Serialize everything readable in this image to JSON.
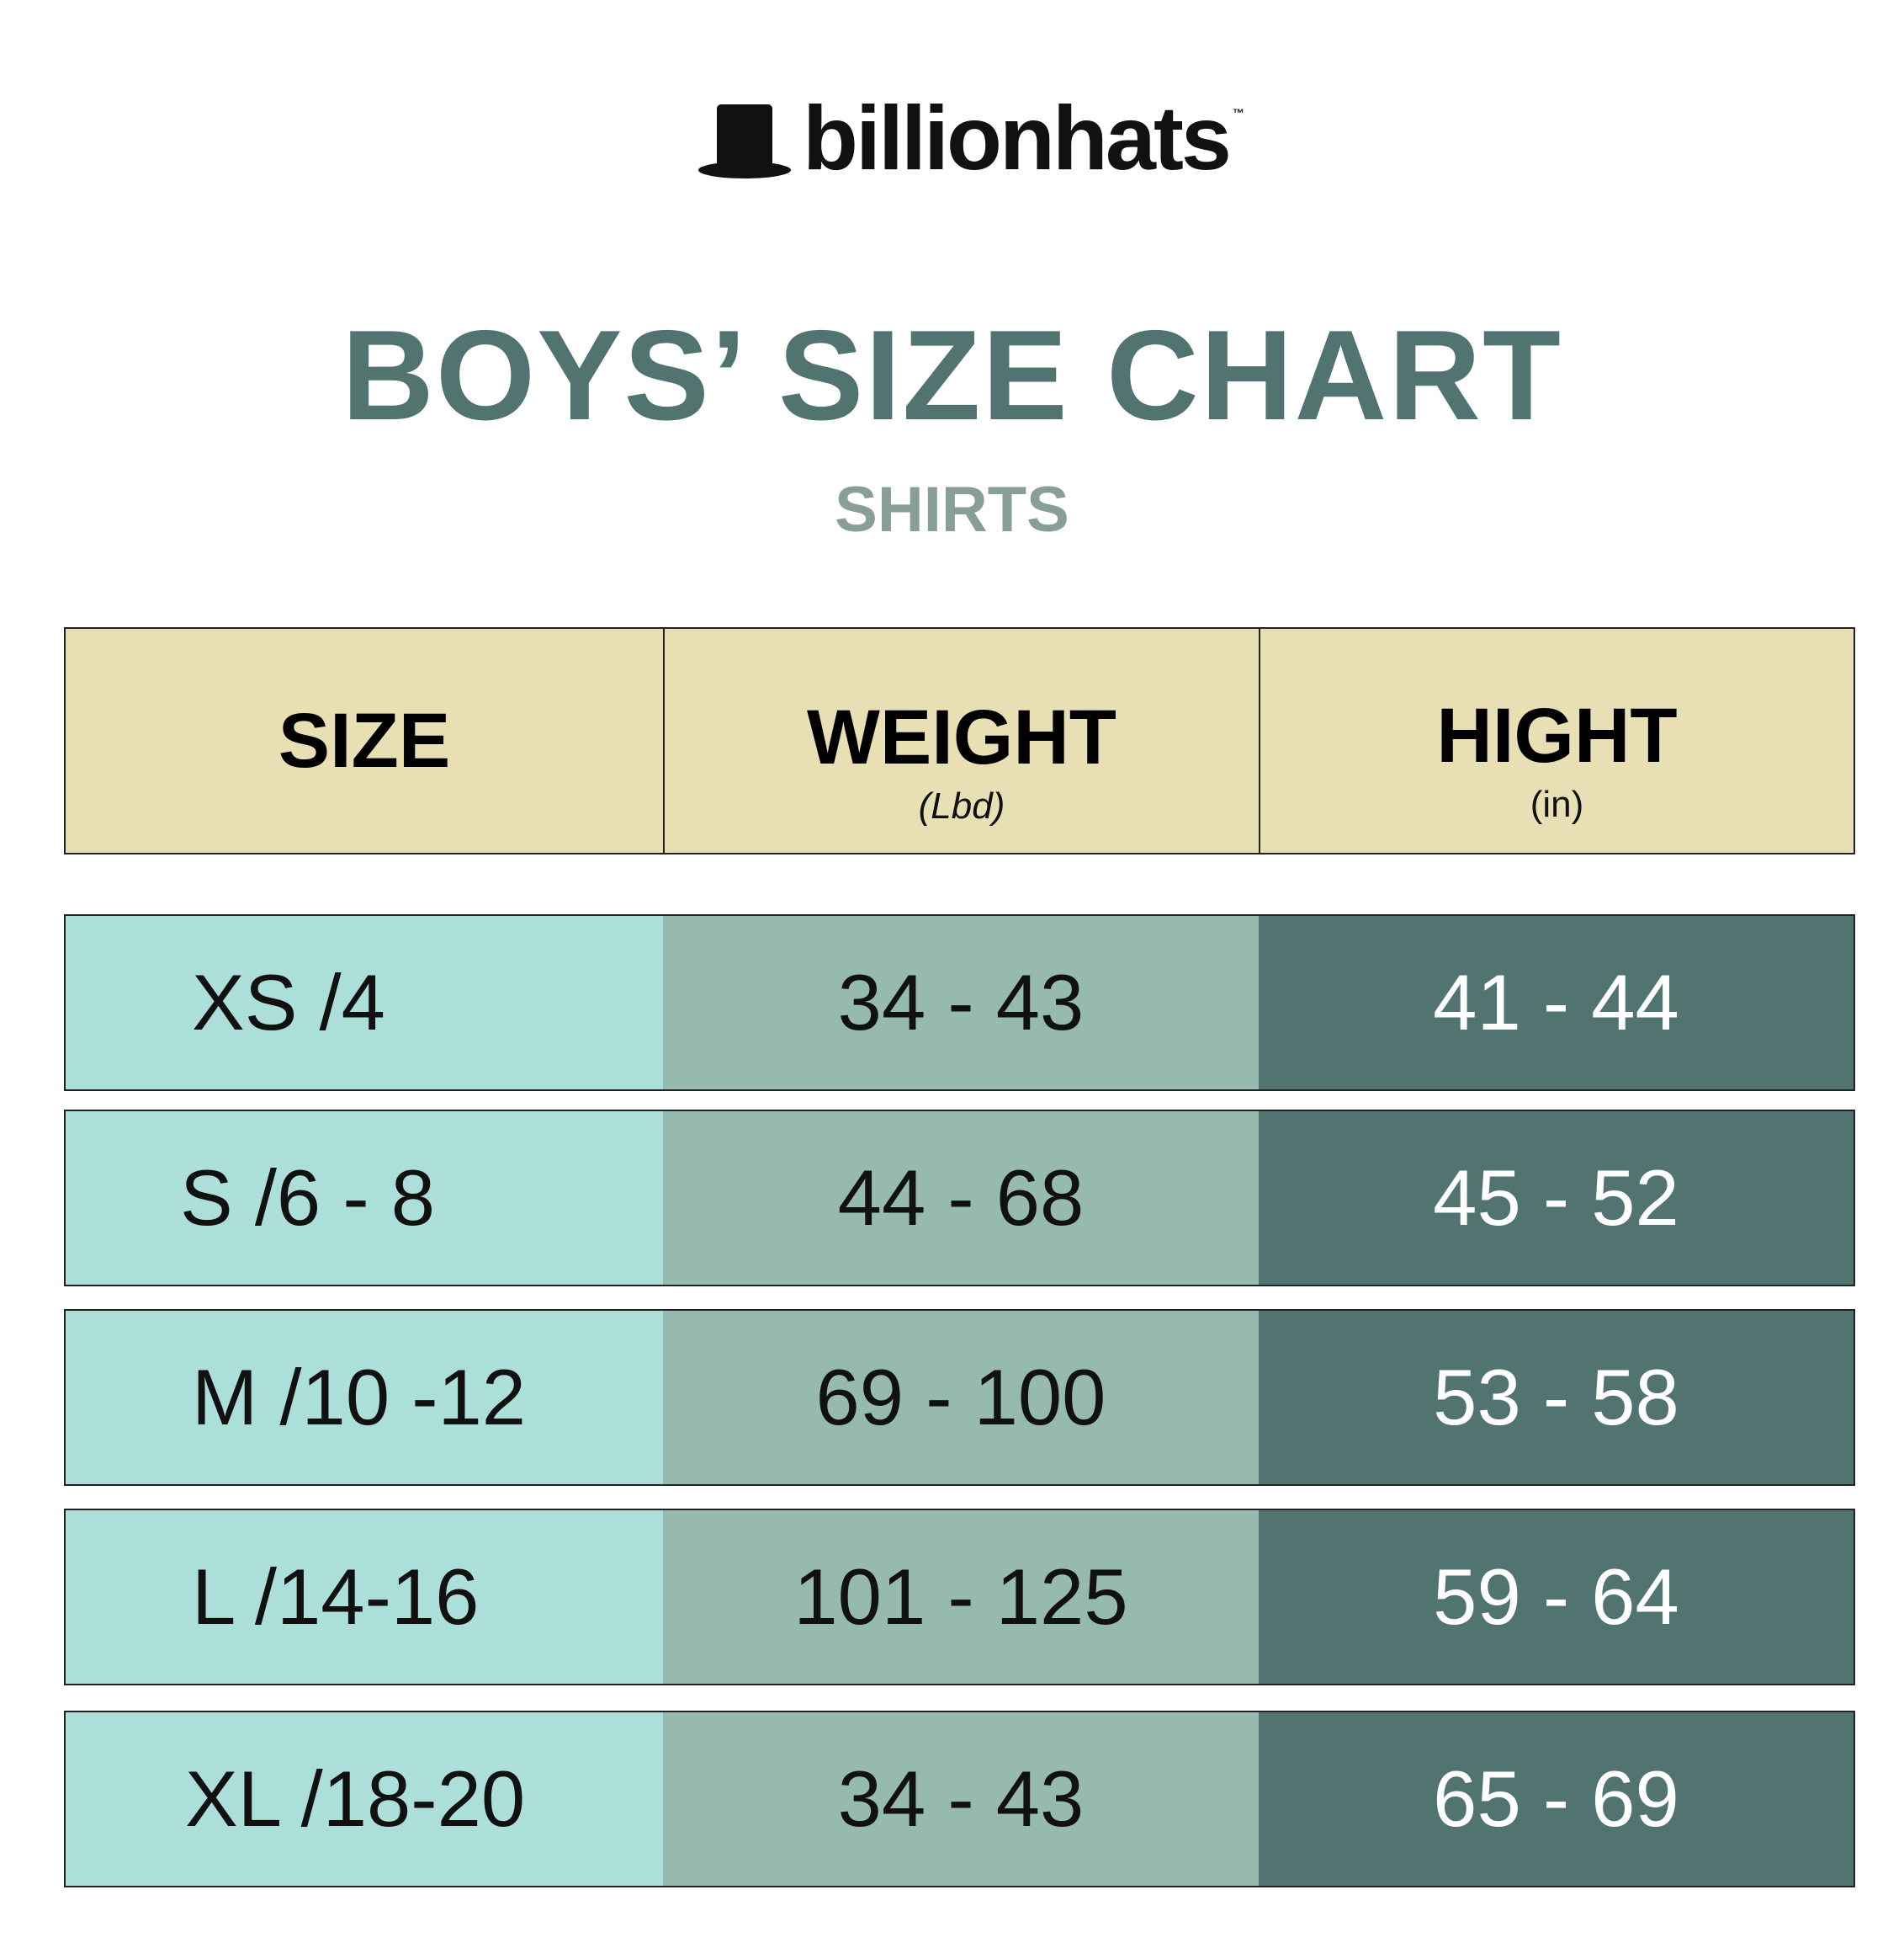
{
  "brand": {
    "name": "billionhats",
    "trademark": "™",
    "logo_icon": "top-hat-icon"
  },
  "title": "BOYS’ SIZE CHART",
  "subtitle": "SHIRTS",
  "colors": {
    "title": "#527470",
    "subtitle": "#889e98",
    "header_bg": "#e9dfb4",
    "size_col": "#acdeda",
    "weight_col": "#97bab0",
    "height_col": "#527470",
    "dark_text": "#111111",
    "light_text": "#ffffff"
  },
  "table": {
    "headers": [
      {
        "label": "SIZE",
        "unit": ""
      },
      {
        "label": "WEIGHT",
        "unit": "(Lbd)"
      },
      {
        "label": "HIGHT",
        "unit": "(in)"
      }
    ],
    "rows": [
      {
        "size": "XS /4",
        "weight": "34 - 43",
        "height": "41 - 44"
      },
      {
        "size": "S /6 - 8",
        "weight": "44 - 68",
        "height": "45 - 52"
      },
      {
        "size": "M /10 -12",
        "weight": "69 - 100",
        "height": "53 - 58"
      },
      {
        "size": "L /14-16",
        "weight": "101 - 125",
        "height": "59 - 64"
      },
      {
        "size": "XL /18-20",
        "weight": "34 - 43",
        "height": "65 - 69"
      }
    ]
  }
}
